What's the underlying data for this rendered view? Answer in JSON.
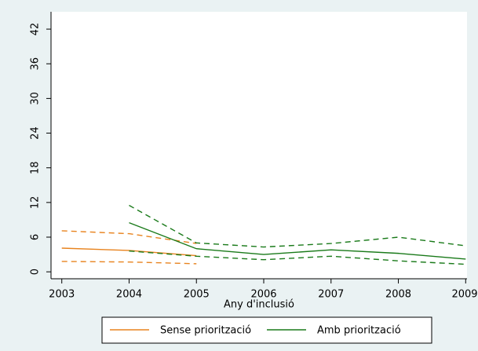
{
  "chart_data": {
    "type": "line",
    "x": [
      2003,
      2004,
      2005,
      2006,
      2007,
      2008,
      2009
    ],
    "xlim": [
      2002.84,
      2009.02
    ],
    "xticks": [
      2003,
      2004,
      2005,
      2006,
      2007,
      2008,
      2009
    ],
    "ylim": [
      -1.2,
      45
    ],
    "yticks": [
      0,
      6,
      12,
      18,
      24,
      30,
      36,
      42
    ],
    "xlabel": "Any d'inclusió",
    "series": [
      {
        "name": "Sense priorització",
        "color": "#e8831e",
        "values": [
          4.1,
          3.7,
          2.8,
          null,
          null,
          null,
          null
        ],
        "lower": [
          1.8,
          1.7,
          1.4,
          null,
          null,
          null,
          null
        ],
        "upper": [
          7.1,
          6.6,
          4.9,
          null,
          null,
          null,
          null
        ]
      },
      {
        "name": "Amb priorització",
        "color": "#1a7a1a",
        "values": [
          null,
          8.5,
          4.0,
          3.0,
          3.8,
          3.2,
          2.2
        ],
        "lower": [
          null,
          3.6,
          2.7,
          2.1,
          2.7,
          1.9,
          1.3
        ],
        "upper": [
          null,
          11.5,
          5.0,
          4.3,
          4.9,
          6.0,
          4.5
        ]
      }
    ],
    "legend": "bottom"
  }
}
